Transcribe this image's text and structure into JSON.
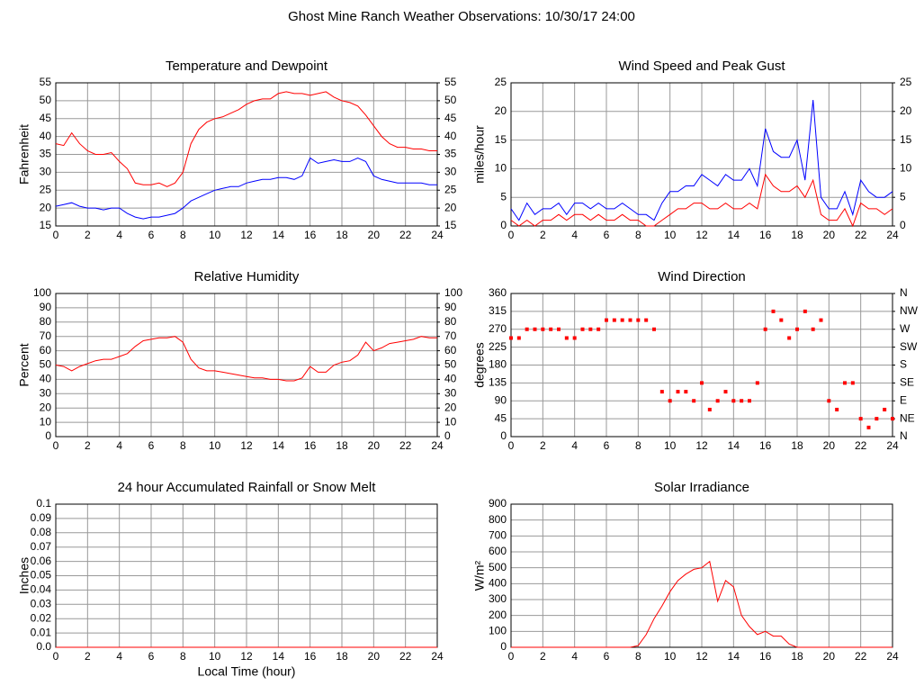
{
  "title": "Ghost Mine Ranch Weather Observations: 10/30/17 24:00",
  "chart_data": [
    {
      "type": "line",
      "title": "Temperature and Dewpoint",
      "ylabel": "Fahrenheit",
      "grid": true,
      "xlim": [
        0,
        24
      ],
      "xticks": [
        0,
        2,
        4,
        6,
        8,
        10,
        12,
        14,
        16,
        18,
        20,
        22,
        24
      ],
      "ylim": [
        15,
        55
      ],
      "yticks": [
        15,
        20,
        25,
        30,
        35,
        40,
        45,
        50,
        55
      ],
      "y2lim": [
        15,
        55
      ],
      "y2ticks": [
        15,
        20,
        25,
        30,
        35,
        40,
        45,
        50,
        55
      ],
      "x": [
        0,
        0.5,
        1,
        1.5,
        2,
        2.5,
        3,
        3.5,
        4,
        4.5,
        5,
        5.5,
        6,
        6.5,
        7,
        7.5,
        8,
        8.5,
        9,
        9.5,
        10,
        10.5,
        11,
        11.5,
        12,
        12.5,
        13,
        13.5,
        14,
        14.5,
        15,
        15.5,
        16,
        16.5,
        17,
        17.5,
        18,
        18.5,
        19,
        19.5,
        20,
        20.5,
        21,
        21.5,
        22,
        22.5,
        23,
        23.5,
        24
      ],
      "series": [
        {
          "color": "#ff0000",
          "values": [
            38,
            37.5,
            41,
            38,
            36,
            35,
            35,
            35.5,
            33,
            31,
            27,
            26.5,
            26.5,
            27,
            26,
            27,
            30,
            38,
            42,
            44,
            45,
            45.5,
            46.5,
            47.5,
            49,
            50,
            50.5,
            50.5,
            52,
            52.5,
            52,
            52,
            51.5,
            52,
            52.5,
            51,
            50,
            49.5,
            48.5,
            46,
            43,
            40,
            38,
            37,
            37,
            36.5,
            36.5,
            36,
            36
          ]
        },
        {
          "color": "#0000ff",
          "values": [
            20.5,
            21,
            21.5,
            20.5,
            20,
            20,
            19.5,
            20,
            20,
            18.5,
            17.5,
            17,
            17.5,
            17.5,
            18,
            18.5,
            20,
            22,
            23,
            24,
            25,
            25.5,
            26,
            26,
            27,
            27.5,
            28,
            28,
            28.5,
            28.5,
            28,
            29,
            34,
            32.5,
            33,
            33.5,
            33,
            33,
            34,
            33,
            29,
            28,
            27.5,
            27,
            27,
            27,
            27,
            26.5,
            26.5
          ]
        }
      ]
    },
    {
      "type": "line",
      "title": "Wind Speed and Peak Gust",
      "ylabel": "miles/hour",
      "grid": true,
      "xlim": [
        0,
        24
      ],
      "xticks": [
        0,
        2,
        4,
        6,
        8,
        10,
        12,
        14,
        16,
        18,
        20,
        22,
        24
      ],
      "ylim": [
        0,
        25
      ],
      "yticks": [
        0,
        5,
        10,
        15,
        20,
        25
      ],
      "y2lim": [
        0,
        25
      ],
      "y2ticks": [
        0,
        5,
        10,
        15,
        20,
        25
      ],
      "x": [
        0,
        0.5,
        1,
        1.5,
        2,
        2.5,
        3,
        3.5,
        4,
        4.5,
        5,
        5.5,
        6,
        6.5,
        7,
        7.5,
        8,
        8.5,
        9,
        9.5,
        10,
        10.5,
        11,
        11.5,
        12,
        12.5,
        13,
        13.5,
        14,
        14.5,
        15,
        15.5,
        16,
        16.5,
        17,
        17.5,
        18,
        18.5,
        19,
        19.5,
        20,
        20.5,
        21,
        21.5,
        22,
        22.5,
        23,
        23.5,
        24
      ],
      "series": [
        {
          "color": "#0000ff",
          "values": [
            3,
            1,
            4,
            2,
            3,
            3,
            4,
            2,
            4,
            4,
            3,
            4,
            3,
            3,
            4,
            3,
            2,
            2,
            1,
            4,
            6,
            6,
            7,
            7,
            9,
            8,
            7,
            9,
            8,
            8,
            10,
            7,
            17,
            13,
            12,
            12,
            15,
            8,
            22,
            5,
            3,
            3,
            6,
            2,
            8,
            6,
            5,
            5,
            6
          ]
        },
        {
          "color": "#ff0000",
          "values": [
            1,
            0,
            1,
            0,
            1,
            1,
            2,
            1,
            2,
            2,
            1,
            2,
            1,
            1,
            2,
            1,
            1,
            0,
            0,
            1,
            2,
            3,
            3,
            4,
            4,
            3,
            3,
            4,
            3,
            3,
            4,
            3,
            9,
            7,
            6,
            6,
            7,
            5,
            8,
            2,
            1,
            1,
            3,
            0,
            4,
            3,
            3,
            2,
            3
          ]
        }
      ]
    },
    {
      "type": "line",
      "title": "Relative Humidity",
      "ylabel": "Percent",
      "grid": true,
      "xlim": [
        0,
        24
      ],
      "xticks": [
        0,
        2,
        4,
        6,
        8,
        10,
        12,
        14,
        16,
        18,
        20,
        22,
        24
      ],
      "ylim": [
        0,
        100
      ],
      "yticks": [
        0,
        10,
        20,
        30,
        40,
        50,
        60,
        70,
        80,
        90,
        100
      ],
      "y2lim": [
        0,
        100
      ],
      "y2ticks": [
        0,
        10,
        20,
        30,
        40,
        50,
        60,
        70,
        80,
        90,
        100
      ],
      "x": [
        0,
        0.5,
        1,
        1.5,
        2,
        2.5,
        3,
        3.5,
        4,
        4.5,
        5,
        5.5,
        6,
        6.5,
        7,
        7.5,
        8,
        8.5,
        9,
        9.5,
        10,
        10.5,
        11,
        11.5,
        12,
        12.5,
        13,
        13.5,
        14,
        14.5,
        15,
        15.5,
        16,
        16.5,
        17,
        17.5,
        18,
        18.5,
        19,
        19.5,
        20,
        20.5,
        21,
        21.5,
        22,
        22.5,
        23,
        23.5,
        24
      ],
      "series": [
        {
          "color": "#ff0000",
          "values": [
            50,
            49,
            46,
            49,
            51,
            53,
            54,
            54,
            56,
            58,
            63,
            67,
            68,
            69,
            69,
            70,
            66,
            54,
            48,
            46,
            46,
            45,
            44,
            43,
            42,
            41,
            41,
            40,
            40,
            39,
            39,
            41,
            49,
            45,
            45,
            50,
            52,
            53,
            57,
            66,
            60,
            62,
            65,
            66,
            67,
            68,
            70,
            69,
            69
          ]
        }
      ]
    },
    {
      "type": "scatter",
      "title": "Wind Direction",
      "ylabel": "degrees",
      "grid": true,
      "xlim": [
        0,
        24
      ],
      "xticks": [
        0,
        2,
        4,
        6,
        8,
        10,
        12,
        14,
        16,
        18,
        20,
        22,
        24
      ],
      "ylim": [
        0,
        360
      ],
      "yticks": [
        0,
        45,
        90,
        135,
        180,
        225,
        270,
        315,
        360
      ],
      "y2lim": [
        0,
        360
      ],
      "y2ticks": [
        {
          "value": 0,
          "label": "N"
        },
        {
          "value": 45,
          "label": "NE"
        },
        {
          "value": 90,
          "label": "E"
        },
        {
          "value": 135,
          "label": "SE"
        },
        {
          "value": 180,
          "label": "S"
        },
        {
          "value": 225,
          "label": "SW"
        },
        {
          "value": 270,
          "label": "W"
        },
        {
          "value": 315,
          "label": "NW"
        },
        {
          "value": 360,
          "label": "N"
        }
      ],
      "x": [
        0,
        0.5,
        1,
        1.5,
        2,
        2.5,
        3,
        3.5,
        4,
        4.5,
        5,
        5.5,
        6,
        6.5,
        7,
        7.5,
        8,
        8.5,
        9,
        9.5,
        10,
        10.5,
        11,
        11.5,
        12,
        12.5,
        13,
        13.5,
        14,
        14.5,
        15,
        15.5,
        16,
        16.5,
        17,
        17.5,
        18,
        18.5,
        19,
        19.5,
        20,
        20.5,
        21,
        21.5,
        22,
        22.5,
        23,
        23.5,
        24
      ],
      "series": [
        {
          "color": "#ff0000",
          "values": [
            248,
            248,
            270,
            270,
            270,
            270,
            270,
            248,
            248,
            270,
            270,
            270,
            293,
            293,
            293,
            293,
            293,
            293,
            270,
            113,
            90,
            113,
            113,
            90,
            135,
            68,
            90,
            113,
            90,
            90,
            90,
            135,
            270,
            315,
            293,
            248,
            270,
            315,
            270,
            293,
            90,
            68,
            135,
            135,
            45,
            23,
            45,
            68,
            45
          ]
        }
      ]
    },
    {
      "type": "line",
      "title": "24 hour Accumulated Rainfall or Snow Melt",
      "ylabel": "Inches",
      "xlabel": "Local Time (hour)",
      "grid": true,
      "xlim": [
        0,
        24
      ],
      "xticks": [
        0,
        2,
        4,
        6,
        8,
        10,
        12,
        14,
        16,
        18,
        20,
        22,
        24
      ],
      "ylim": [
        0,
        0.1
      ],
      "yticks": [
        {
          "value": 0,
          "label": "0.0"
        },
        0.01,
        0.02,
        0.03,
        0.04,
        0.05,
        0.06,
        0.07,
        0.08,
        0.09,
        0.1
      ],
      "x": [
        0,
        24
      ],
      "series": [
        {
          "color": "#ff0000",
          "values": [
            0,
            0
          ]
        }
      ]
    },
    {
      "type": "line",
      "title": "Solar Irradiance",
      "ylabel": "W/m²",
      "grid": true,
      "xlim": [
        0,
        24
      ],
      "xticks": [
        0,
        2,
        4,
        6,
        8,
        10,
        12,
        14,
        16,
        18,
        20,
        22,
        24
      ],
      "ylim": [
        0,
        900
      ],
      "yticks": [
        0,
        100,
        200,
        300,
        400,
        500,
        600,
        700,
        800,
        900
      ],
      "x": [
        0,
        0.5,
        1,
        1.5,
        2,
        2.5,
        3,
        3.5,
        4,
        4.5,
        5,
        5.5,
        6,
        6.5,
        7,
        7.5,
        8,
        8.5,
        9,
        9.5,
        10,
        10.5,
        11,
        11.5,
        12,
        12.5,
        13,
        13.5,
        14,
        14.5,
        15,
        15.5,
        16,
        16.5,
        17,
        17.5,
        18,
        18.5,
        19,
        19.5,
        20,
        20.5,
        21,
        21.5,
        22,
        22.5,
        23,
        23.5,
        24
      ],
      "series": [
        {
          "color": "#ff0000",
          "values": [
            0,
            0,
            0,
            0,
            0,
            0,
            0,
            0,
            0,
            0,
            0,
            0,
            0,
            0,
            0,
            0,
            10,
            80,
            180,
            260,
            350,
            420,
            460,
            490,
            500,
            540,
            290,
            420,
            380,
            200,
            130,
            80,
            100,
            70,
            70,
            20,
            0,
            0,
            0,
            0,
            0,
            0,
            0,
            0,
            0,
            0,
            0,
            0,
            0
          ]
        }
      ]
    }
  ]
}
